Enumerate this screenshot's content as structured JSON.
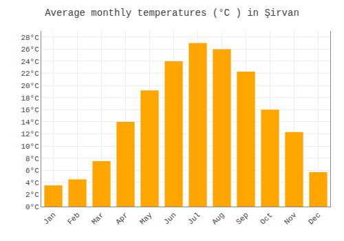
{
  "chart_data": {
    "type": "bar",
    "title": "Average monthly temperatures (°C ) in Şirvan",
    "categories": [
      "Jan",
      "Feb",
      "Mar",
      "Apr",
      "May",
      "Jun",
      "Jul",
      "Aug",
      "Sep",
      "Oct",
      "Nov",
      "Dec"
    ],
    "values": [
      3.5,
      4.5,
      7.5,
      14.0,
      19.2,
      24.0,
      27.0,
      26.0,
      22.3,
      16.0,
      12.3,
      5.7
    ],
    "color": "#FFA500",
    "ylim": [
      0,
      29
    ],
    "yticks": [
      {
        "value": 0,
        "label": "0°C"
      },
      {
        "value": 2,
        "label": "2°C"
      },
      {
        "value": 4,
        "label": "4°C"
      },
      {
        "value": 6,
        "label": "6°C"
      },
      {
        "value": 8,
        "label": "8°C"
      },
      {
        "value": 10,
        "label": "10°C"
      },
      {
        "value": 12,
        "label": "12°C"
      },
      {
        "value": 14,
        "label": "14°C"
      },
      {
        "value": 16,
        "label": "16°C"
      },
      {
        "value": 18,
        "label": "18°C"
      },
      {
        "value": 20,
        "label": "20°C"
      },
      {
        "value": 22,
        "label": "22°C"
      },
      {
        "value": 24,
        "label": "24°C"
      },
      {
        "value": 26,
        "label": "26°C"
      },
      {
        "value": 28,
        "label": "28°C"
      }
    ],
    "grid": true
  }
}
